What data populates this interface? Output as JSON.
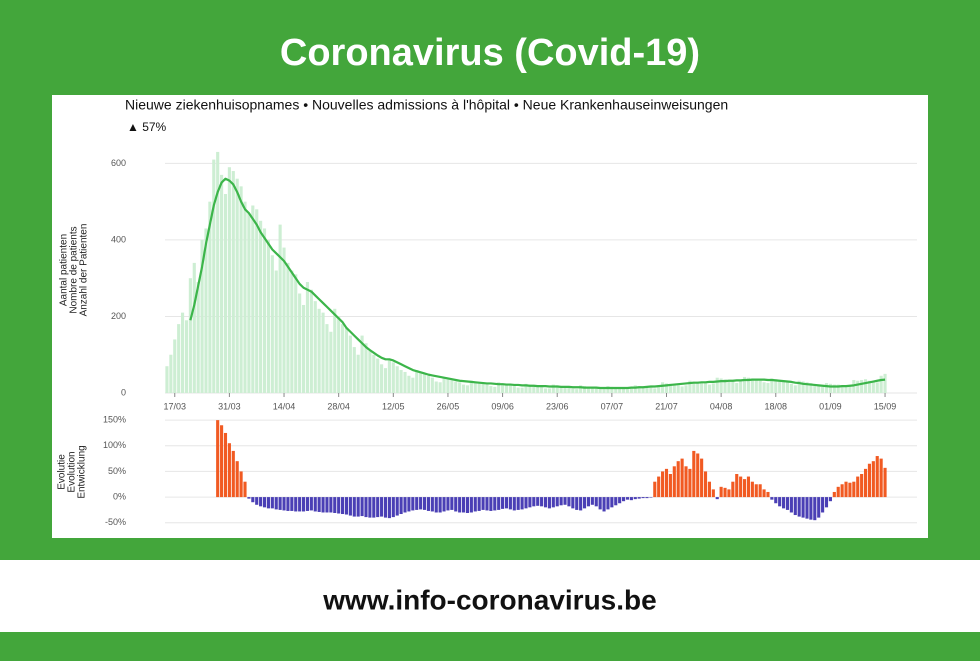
{
  "header": {
    "title": "Coronavirus (Covid-19)"
  },
  "footer": {
    "url": "www.info-coronavirus.be"
  },
  "chart_data": [
    {
      "type": "bar",
      "title": "Nieuwe ziekenhuisopnames • Nouvelles admissions à l'hôpital • Neue Krankenhauseinweisungen",
      "annotation": "▲ 57%",
      "y_label": [
        "Aantal patienten",
        "Nombre de patients",
        "Anzahl der Patienten"
      ],
      "categories": [
        null,
        null,
        "17/03",
        null,
        null,
        null,
        null,
        null,
        null,
        null,
        null,
        null,
        null,
        null,
        null,
        null,
        "31/03",
        null,
        null,
        null,
        null,
        null,
        null,
        null,
        null,
        null,
        null,
        null,
        null,
        null,
        "14/04",
        null,
        null,
        null,
        null,
        null,
        null,
        null,
        null,
        null,
        null,
        null,
        null,
        null,
        "28/04",
        null,
        null,
        null,
        null,
        null,
        null,
        null,
        null,
        null,
        null,
        null,
        null,
        null,
        "12/05",
        null,
        null,
        null,
        null,
        null,
        null,
        null,
        null,
        null,
        null,
        null,
        null,
        null,
        "26/05",
        null,
        null,
        null,
        null,
        null,
        null,
        null,
        null,
        null,
        null,
        null,
        null,
        null,
        "09/06",
        null,
        null,
        null,
        null,
        null,
        null,
        null,
        null,
        null,
        null,
        null,
        null,
        null,
        "23/06",
        null,
        null,
        null,
        null,
        null,
        null,
        null,
        null,
        null,
        null,
        null,
        null,
        null,
        "07/07",
        null,
        null,
        null,
        null,
        null,
        null,
        null,
        null,
        null,
        null,
        null,
        null,
        null,
        "21/07",
        null,
        null,
        null,
        null,
        null,
        null,
        null,
        null,
        null,
        null,
        null,
        null,
        null,
        "04/08",
        null,
        null,
        null,
        null,
        null,
        null,
        null,
        null,
        null,
        null,
        null,
        null,
        null,
        "18/08",
        null,
        null,
        null,
        null,
        null,
        null,
        null,
        null,
        null,
        null,
        null,
        null,
        null,
        "01/09",
        null,
        null,
        null,
        null,
        null,
        null,
        null,
        null,
        null,
        null,
        null,
        null,
        null,
        "15/09"
      ],
      "series": [
        {
          "type": "bar",
          "color": "#cdeed3",
          "values": [
            70,
            100,
            140,
            180,
            210,
            190,
            300,
            340,
            290,
            400,
            430,
            500,
            610,
            630,
            570,
            520,
            590,
            580,
            560,
            540,
            500,
            470,
            490,
            480,
            450,
            430,
            400,
            360,
            320,
            440,
            380,
            340,
            320,
            310,
            260,
            230,
            290,
            270,
            240,
            220,
            210,
            180,
            160,
            220,
            200,
            180,
            170,
            150,
            120,
            100,
            150,
            130,
            110,
            100,
            90,
            75,
            65,
            90,
            80,
            70,
            60,
            55,
            45,
            40,
            60,
            55,
            50,
            45,
            40,
            30,
            28,
            40,
            38,
            35,
            30,
            28,
            22,
            20,
            32,
            30,
            28,
            25,
            22,
            18,
            16,
            28,
            25,
            22,
            20,
            18,
            14,
            14,
            24,
            22,
            20,
            18,
            16,
            12,
            12,
            22,
            20,
            18,
            16,
            14,
            11,
            10,
            20,
            18,
            16,
            15,
            13,
            10,
            10,
            18,
            16,
            15,
            14,
            13,
            10,
            12,
            20,
            18,
            17,
            16,
            15,
            12,
            15,
            28,
            25,
            24,
            22,
            20,
            17,
            20,
            32,
            30,
            30,
            28,
            26,
            22,
            25,
            40,
            38,
            36,
            34,
            30,
            26,
            30,
            42,
            40,
            38,
            36,
            32,
            28,
            26,
            38,
            36,
            34,
            32,
            28,
            24,
            20,
            32,
            30,
            28,
            26,
            22,
            18,
            16,
            26,
            24,
            22,
            22,
            20,
            17,
            20,
            34,
            32,
            34,
            36,
            32,
            30,
            28,
            45,
            50
          ]
        },
        {
          "type": "line",
          "color": "#3cb54a",
          "values": [
            null,
            null,
            null,
            null,
            null,
            null,
            190,
            230,
            280,
            330,
            390,
            440,
            490,
            525,
            550,
            560,
            555,
            545,
            525,
            500,
            480,
            470,
            455,
            440,
            420,
            405,
            390,
            375,
            365,
            355,
            345,
            330,
            315,
            300,
            285,
            275,
            270,
            265,
            255,
            245,
            235,
            225,
            215,
            205,
            195,
            185,
            170,
            160,
            150,
            140,
            130,
            120,
            112,
            105,
            98,
            92,
            88,
            88,
            85,
            80,
            75,
            70,
            65,
            60,
            57,
            54,
            51,
            48,
            46,
            44,
            42,
            40,
            38,
            36,
            34,
            32,
            31,
            30,
            29,
            28,
            27,
            26,
            25,
            25,
            24,
            23,
            23,
            22,
            22,
            21,
            21,
            20,
            20,
            19,
            19,
            18,
            18,
            18,
            17,
            17,
            17,
            16,
            16,
            16,
            15,
            15,
            15,
            14,
            14,
            14,
            14,
            13,
            13,
            13,
            13,
            13,
            13,
            13,
            13,
            14,
            14,
            15,
            15,
            16,
            17,
            17,
            18,
            19,
            20,
            21,
            22,
            23,
            24,
            25,
            26,
            27,
            27,
            28,
            28,
            29,
            29,
            30,
            31,
            31,
            32,
            32,
            33,
            33,
            34,
            34,
            35,
            35,
            35,
            35,
            34,
            34,
            33,
            32,
            31,
            30,
            29,
            27,
            26,
            24,
            23,
            22,
            21,
            20,
            19,
            18,
            17,
            17,
            17,
            18,
            18,
            19,
            20,
            22,
            24,
            26,
            28,
            30,
            32,
            34,
            35
          ]
        }
      ],
      "ylim": [
        0,
        635
      ],
      "yticks": [
        0,
        200,
        400,
        600
      ],
      "grid": true
    },
    {
      "type": "bar",
      "y_label": [
        "Evolutie",
        "Evolution",
        "Entwicklung"
      ],
      "color_positive": "#f15a22",
      "color_negative": "#4a3fb5",
      "values": [
        null,
        null,
        null,
        null,
        null,
        null,
        null,
        null,
        null,
        null,
        null,
        null,
        null,
        150,
        140,
        125,
        105,
        90,
        70,
        50,
        30,
        -3,
        -10,
        -15,
        -18,
        -20,
        -22,
        -22,
        -24,
        -25,
        -26,
        -27,
        -27,
        -28,
        -28,
        -28,
        -27,
        -26,
        -28,
        -29,
        -30,
        -30,
        -30,
        -31,
        -32,
        -33,
        -34,
        -36,
        -38,
        -38,
        -37,
        -39,
        -40,
        -40,
        -39,
        -38,
        -40,
        -41,
        -39,
        -36,
        -33,
        -30,
        -28,
        -26,
        -25,
        -24,
        -25,
        -27,
        -28,
        -30,
        -30,
        -28,
        -26,
        -25,
        -28,
        -30,
        -30,
        -31,
        -30,
        -28,
        -27,
        -25,
        -26,
        -27,
        -26,
        -25,
        -23,
        -22,
        -24,
        -26,
        -25,
        -24,
        -22,
        -20,
        -18,
        -17,
        -18,
        -20,
        -22,
        -20,
        -18,
        -16,
        -15,
        -18,
        -22,
        -25,
        -26,
        -22,
        -18,
        -15,
        -18,
        -24,
        -28,
        -24,
        -20,
        -16,
        -12,
        -8,
        -5,
        -6,
        -4,
        -3,
        -2,
        -2,
        -1,
        30,
        40,
        50,
        55,
        45,
        60,
        70,
        75,
        60,
        55,
        90,
        85,
        75,
        50,
        30,
        15,
        -4,
        20,
        18,
        15,
        30,
        45,
        40,
        35,
        40,
        30,
        25,
        25,
        15,
        10,
        -5,
        -12,
        -18,
        -22,
        -25,
        -30,
        -35,
        -38,
        -40,
        -42,
        -44,
        -45,
        -40,
        -30,
        -20,
        -8,
        10,
        20,
        25,
        30,
        28,
        30,
        40,
        45,
        55,
        65,
        70,
        80,
        75,
        57
      ],
      "ylim": [
        -70,
        160
      ],
      "yticks": [
        {
          "value": -50,
          "label": "-50%"
        },
        {
          "value": 0,
          "label": "0%"
        },
        {
          "value": 50,
          "label": "50%"
        },
        {
          "value": 100,
          "label": "100%"
        },
        {
          "value": 150,
          "label": "150%"
        }
      ],
      "grid": true
    }
  ]
}
